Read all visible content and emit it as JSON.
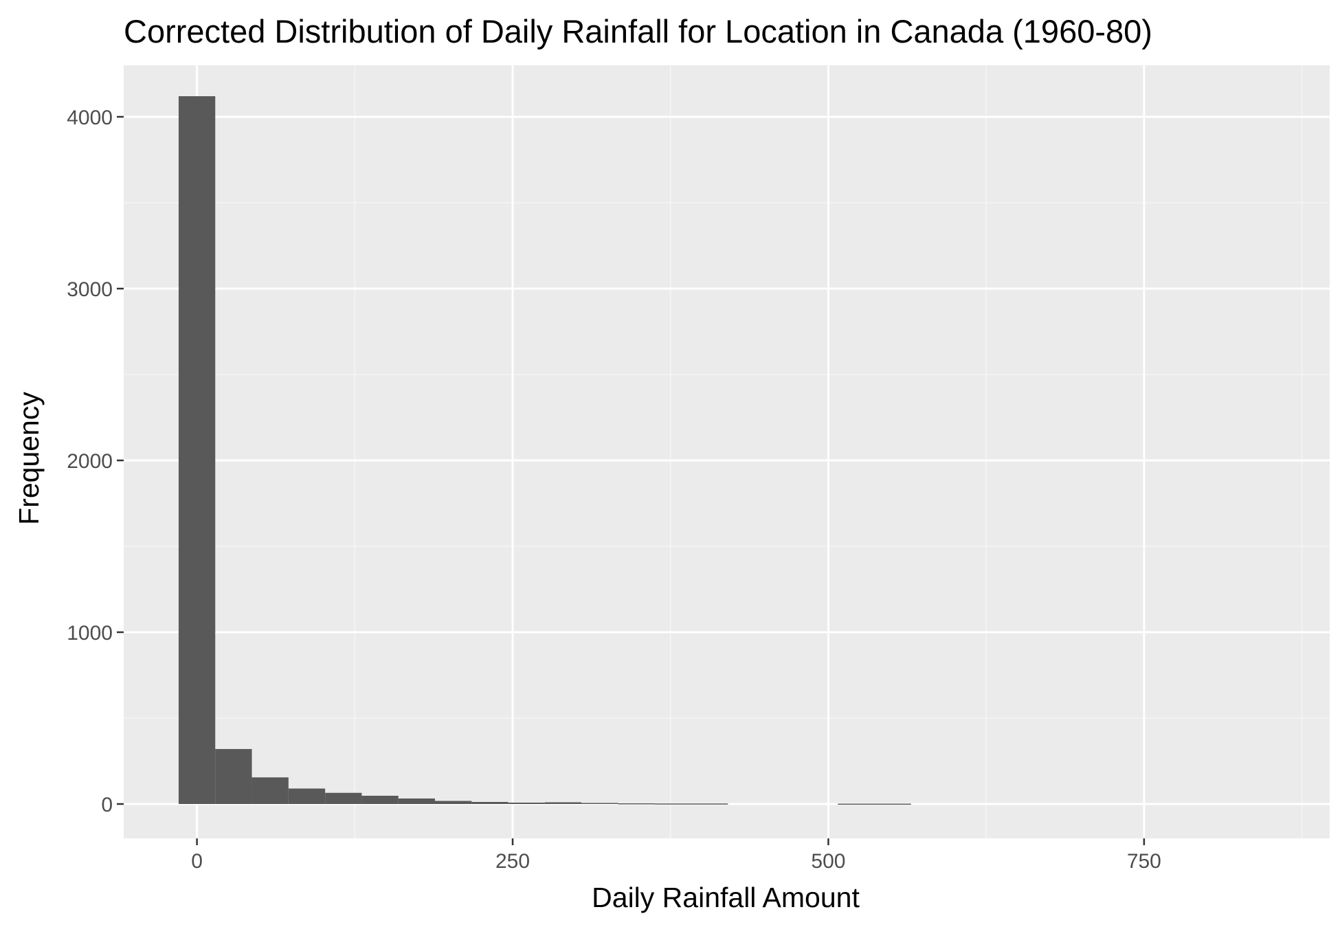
{
  "chart_data": {
    "type": "bar",
    "subtype": "histogram",
    "title": "Corrected Distribution of Daily Rainfall for Location in Canada (1960-80)",
    "xlabel": "Daily Rainfall Amount",
    "ylabel": "Frequency",
    "xlim": [
      -58,
      897
    ],
    "ylim": [
      -200,
      4300
    ],
    "x_ticks": [
      0,
      250,
      500,
      750
    ],
    "x_tick_labels": [
      "0",
      "250",
      "500",
      "750"
    ],
    "y_ticks": [
      0,
      1000,
      2000,
      3000,
      4000
    ],
    "y_tick_labels": [
      "0",
      "1000",
      "2000",
      "3000",
      "4000"
    ],
    "bin_width": 29,
    "bins": [
      {
        "x0": -14.5,
        "x1": 14.5,
        "count": 4120
      },
      {
        "x0": 14.5,
        "x1": 43.5,
        "count": 320
      },
      {
        "x0": 43.5,
        "x1": 72.5,
        "count": 155
      },
      {
        "x0": 72.5,
        "x1": 101.5,
        "count": 90
      },
      {
        "x0": 101.5,
        "x1": 130.5,
        "count": 65
      },
      {
        "x0": 130.5,
        "x1": 159.5,
        "count": 48
      },
      {
        "x0": 159.5,
        "x1": 188.5,
        "count": 32
      },
      {
        "x0": 188.5,
        "x1": 217.5,
        "count": 18
      },
      {
        "x0": 217.5,
        "x1": 246.5,
        "count": 12
      },
      {
        "x0": 246.5,
        "x1": 275.5,
        "count": 8
      },
      {
        "x0": 275.5,
        "x1": 304.5,
        "count": 10
      },
      {
        "x0": 304.5,
        "x1": 333.5,
        "count": 6
      },
      {
        "x0": 333.5,
        "x1": 362.5,
        "count": 4
      },
      {
        "x0": 362.5,
        "x1": 391.5,
        "count": 3
      },
      {
        "x0": 391.5,
        "x1": 420.5,
        "count": 3
      },
      {
        "x0": 420.5,
        "x1": 449.5,
        "count": 0
      },
      {
        "x0": 449.5,
        "x1": 478.5,
        "count": 0
      },
      {
        "x0": 478.5,
        "x1": 507.5,
        "count": 0
      },
      {
        "x0": 507.5,
        "x1": 536.5,
        "count": 2
      },
      {
        "x0": 536.5,
        "x1": 565.5,
        "count": 2
      }
    ],
    "grid": true,
    "colors": {
      "bar_fill": "#595959",
      "panel_background": "#ebebeb",
      "grid_major": "#ffffff",
      "grid_minor": "#f5f5f5",
      "tick_text": "#4d4d4d",
      "tick_mark": "#333333"
    }
  }
}
